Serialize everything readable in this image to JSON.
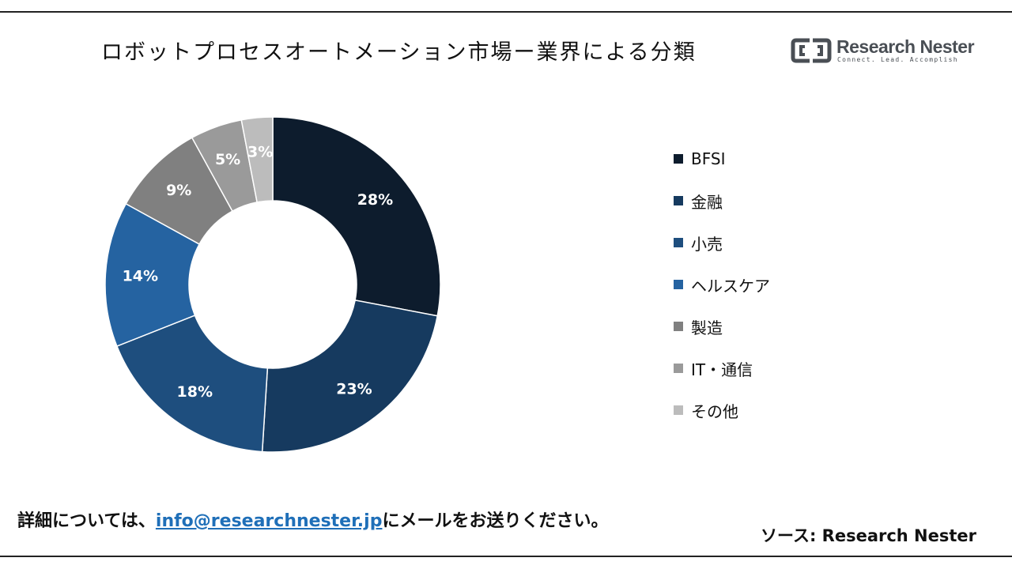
{
  "title": "ロボットプロセスオートメーション市場ー業界による分類",
  "logo": {
    "name": "Research Nester",
    "tagline": "Connect. Lead. Accomplish"
  },
  "chart_data": {
    "type": "pie",
    "subtype": "donut",
    "categories": [
      "BFSI",
      "金融",
      "小売",
      "ヘルスケア",
      "製造",
      "IT・通信",
      "その他"
    ],
    "values": [
      28,
      23,
      18,
      14,
      9,
      5,
      3
    ],
    "value_labels": [
      "28%",
      "23%",
      "18%",
      "14%",
      "9%",
      "5%",
      "3%"
    ],
    "colors": [
      "#0d1c2d",
      "#163a5f",
      "#1e4e7e",
      "#2563a1",
      "#808080",
      "#9a9a9a",
      "#bcbcbc"
    ],
    "legend_position": "right"
  },
  "footer": {
    "prefix": "詳細については、",
    "email": "info@researchnester.jp",
    "suffix": "にメールをお送りください。"
  },
  "source": "ソース: Research Nester"
}
